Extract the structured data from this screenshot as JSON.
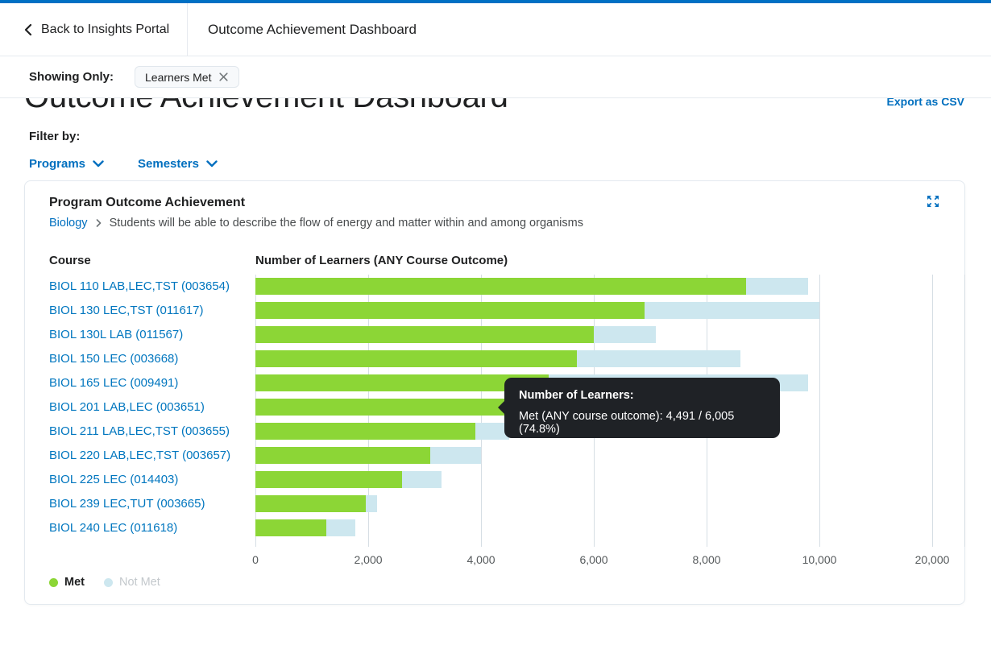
{
  "header": {
    "back_label": "Back to Insights Portal",
    "title": "Outcome Achievement Dashboard"
  },
  "filter_bar": {
    "label": "Showing Only:",
    "chip_label": "Learners Met"
  },
  "page": {
    "heading": "Outcome Achievement Dashboard",
    "export_label": "Export as CSV",
    "filter_by_label": "Filter by:",
    "filters": [
      {
        "label": "Programs"
      },
      {
        "label": "Semesters"
      }
    ]
  },
  "card": {
    "title": "Program Outcome Achievement",
    "breadcrumb": {
      "program": "Biology",
      "outcome": "Students will be able to describe the flow of energy and matter within and among organisms"
    },
    "course_header": "Course",
    "chart_header": "Number of Learners (ANY Course Outcome)",
    "legend": [
      {
        "label": "Met",
        "color": "#8CD636",
        "state": "active"
      },
      {
        "label": "Not Met",
        "color": "#CDE7EF",
        "state": "inactive"
      }
    ]
  },
  "tooltip": {
    "title": "Number of Learners:",
    "body": "Met (ANY course outcome): 4,491 / 6,005 (74.8%)"
  },
  "colors": {
    "brand_blue": "#0070C4",
    "link_blue": "#006FBF",
    "met_green": "#8CD636",
    "not_met_blue": "#CDE7EF",
    "tooltip_bg": "#1F2226"
  },
  "chart_data": {
    "type": "bar",
    "orientation": "horizontal",
    "stacked": true,
    "title": "Program Outcome Achievement",
    "xlabel": "Number of Learners (ANY Course Outcome)",
    "grid": true,
    "legend_position": "bottom-left",
    "categories": [
      "BIOL 110 LAB,LEC,TST (003654)",
      "BIOL 130 LEC,TST (011617)",
      "BIOL 130L LAB (011567)",
      "BIOL 150 LEC (003668)",
      "BIOL 165 LEC (009491)",
      "BIOL 201 LAB,LEC (003651)",
      "BIOL 211 LAB,LEC,TST (003655)",
      "BIOL 220 LAB,LEC,TST (003657)",
      "BIOL 225 LEC (014403)",
      "BIOL 239 LEC,TUT (003665)",
      "BIOL 240 LEC (011618)"
    ],
    "series": [
      {
        "name": "Met",
        "color": "#8CD636",
        "values": [
          8700,
          6900,
          6000,
          5700,
          5200,
          4491,
          3900,
          3100,
          2600,
          1950,
          1250
        ]
      },
      {
        "name": "Not Met",
        "color": "#CDE7EF",
        "values": [
          1100,
          3100,
          1100,
          2900,
          4600,
          1514,
          600,
          900,
          700,
          200,
          520
        ]
      }
    ],
    "x_ticks": [
      "0",
      "2,000",
      "4,000",
      "6,000",
      "8,000",
      "10,000",
      "20,000"
    ],
    "x_tick_values": [
      0,
      2000,
      4000,
      6000,
      8000,
      10000,
      20000
    ],
    "axis_note": "ticks evenly spaced; values above are estimates read from gridlines except highlighted row",
    "highlighted_row": {
      "category": "BIOL 201 LAB,LEC (003651)",
      "met": 4491,
      "total": 6005,
      "percent": "74.8%"
    }
  }
}
